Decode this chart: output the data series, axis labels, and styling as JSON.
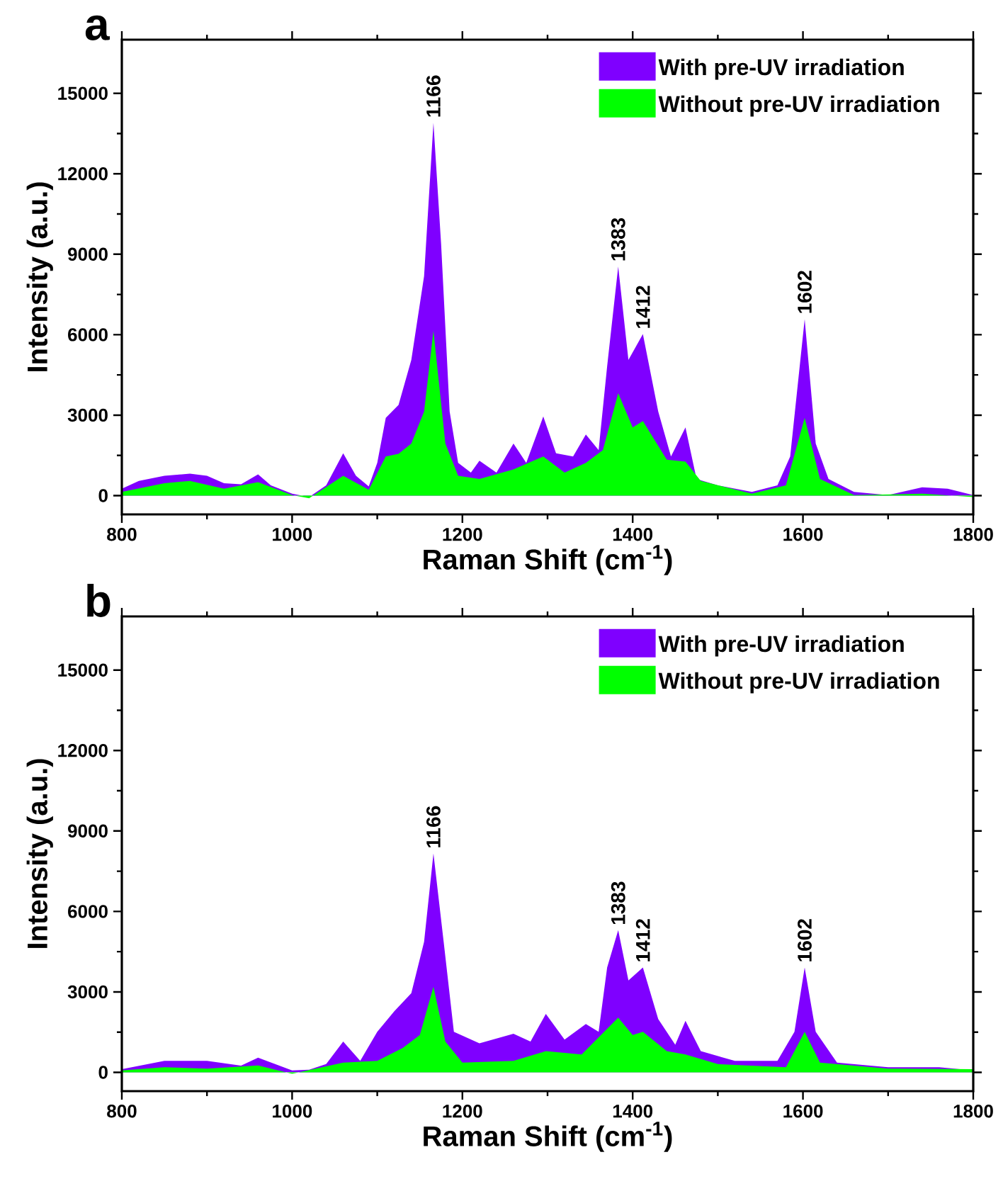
{
  "chart_data": [
    {
      "type": "area",
      "title": "a",
      "xlabel": "Raman Shift (cm$^{-1}$)",
      "ylabel": "Intensity (a.u.)",
      "xlim": [
        800,
        1800
      ],
      "ylim": [
        -700,
        17000
      ],
      "xticks": [
        800,
        1000,
        1200,
        1400,
        1600,
        1800
      ],
      "yticks": [
        0,
        3000,
        6000,
        9000,
        12000,
        15000
      ],
      "legend": "top right",
      "series": [
        {
          "name": "With pre-UV irradiation",
          "color": "#7f00ff",
          "x": [
            800,
            820,
            850,
            880,
            900,
            920,
            940,
            960,
            975,
            1000,
            1020,
            1040,
            1060,
            1075,
            1090,
            1100,
            1110,
            1125,
            1140,
            1155,
            1166,
            1175,
            1185,
            1195,
            1210,
            1220,
            1240,
            1260,
            1275,
            1295,
            1310,
            1330,
            1345,
            1360,
            1370,
            1383,
            1395,
            1412,
            1430,
            1445,
            1462,
            1475,
            1500,
            1540,
            1570,
            1585,
            1602,
            1615,
            1630,
            1660,
            1700,
            1740,
            1770,
            1800
          ],
          "values": [
            260,
            550,
            740,
            820,
            740,
            460,
            420,
            790,
            380,
            70,
            -50,
            380,
            1580,
            740,
            340,
            1220,
            2900,
            3380,
            5060,
            8180,
            13900,
            9380,
            3140,
            1220,
            860,
            1300,
            860,
            1940,
            1220,
            2950,
            1580,
            1460,
            2280,
            1700,
            4820,
            8540,
            5060,
            6020,
            3140,
            1460,
            2540,
            620,
            380,
            140,
            380,
            1460,
            6580,
            1940,
            620,
            140,
            20,
            310,
            260,
            20
          ]
        },
        {
          "name": "Without pre-UV irradiation",
          "color": "#00ff00",
          "x": [
            800,
            850,
            880,
            920,
            960,
            1000,
            1020,
            1060,
            1090,
            1110,
            1125,
            1140,
            1155,
            1166,
            1180,
            1195,
            1220,
            1260,
            1295,
            1320,
            1345,
            1365,
            1383,
            1400,
            1412,
            1440,
            1462,
            1480,
            1540,
            1580,
            1602,
            1620,
            1660,
            1740,
            1800
          ],
          "values": [
            140,
            460,
            550,
            260,
            500,
            20,
            -100,
            740,
            220,
            1460,
            1560,
            1940,
            3140,
            6140,
            1940,
            740,
            620,
            980,
            1460,
            860,
            1220,
            1700,
            3820,
            2540,
            2780,
            1340,
            1270,
            550,
            70,
            380,
            2900,
            620,
            20,
            70,
            -50
          ]
        }
      ],
      "annotations": [
        {
          "text": "1166",
          "x": 1166,
          "y": 13900
        },
        {
          "text": "1383",
          "x": 1383,
          "y": 8540
        },
        {
          "text": "1412",
          "x": 1412,
          "y": 6020
        },
        {
          "text": "1602",
          "x": 1602,
          "y": 6580
        }
      ]
    },
    {
      "type": "area",
      "title": "b",
      "xlabel": "Raman Shift (cm$^{-1}$)",
      "ylabel": "Intensity (a.u.)",
      "xlim": [
        800,
        1800
      ],
      "ylim": [
        -700,
        17000
      ],
      "xticks": [
        800,
        1000,
        1200,
        1400,
        1600,
        1800
      ],
      "yticks": [
        0,
        3000,
        6000,
        9000,
        12000,
        15000
      ],
      "legend": "top right",
      "series": [
        {
          "name": "With pre-UV irradiation",
          "color": "#7f00ff",
          "x": [
            800,
            850,
            900,
            940,
            960,
            1000,
            1020,
            1040,
            1060,
            1080,
            1100,
            1120,
            1140,
            1155,
            1166,
            1178,
            1190,
            1220,
            1260,
            1280,
            1298,
            1320,
            1345,
            1360,
            1370,
            1383,
            1395,
            1412,
            1430,
            1450,
            1462,
            1480,
            1520,
            1570,
            1590,
            1602,
            1615,
            1640,
            1700,
            1760,
            1800
          ],
          "values": [
            120,
            430,
            430,
            250,
            550,
            70,
            100,
            310,
            1150,
            430,
            1510,
            2280,
            2950,
            4870,
            8160,
            4870,
            1510,
            1080,
            1440,
            1150,
            2180,
            1220,
            1800,
            1510,
            3910,
            5300,
            3430,
            3910,
            1990,
            1030,
            1920,
            790,
            430,
            430,
            1510,
            3910,
            1510,
            360,
            190,
            190,
            70
          ]
        },
        {
          "name": "Without pre-UV irradiation",
          "color": "#00ff00",
          "x": [
            800,
            850,
            900,
            960,
            1000,
            1060,
            1100,
            1130,
            1150,
            1166,
            1180,
            1200,
            1260,
            1298,
            1340,
            1383,
            1400,
            1412,
            1440,
            1462,
            1500,
            1580,
            1602,
            1620,
            1700,
            1800
          ],
          "values": [
            70,
            190,
            140,
            260,
            -50,
            360,
            430,
            910,
            1390,
            3190,
            1150,
            360,
            430,
            790,
            670,
            2040,
            1390,
            1510,
            790,
            670,
            310,
            190,
            1510,
            360,
            140,
            120
          ]
        }
      ],
      "annotations": [
        {
          "text": "1166",
          "x": 1166,
          "y": 8160
        },
        {
          "text": "1383",
          "x": 1383,
          "y": 5300
        },
        {
          "text": "1412",
          "x": 1412,
          "y": 3910
        },
        {
          "text": "1602",
          "x": 1602,
          "y": 3910
        }
      ]
    }
  ]
}
